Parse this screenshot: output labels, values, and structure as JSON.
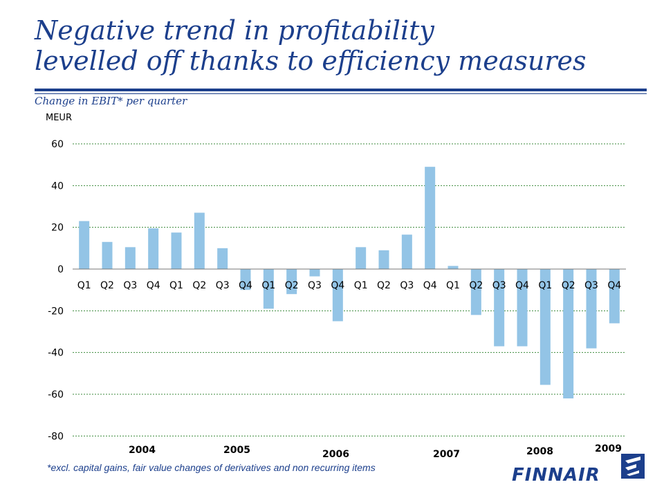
{
  "header": {
    "title_line1": "Negative trend in profitability",
    "title_line2": "levelled off thanks to efficiency measures",
    "subtitle": "Change in EBIT* per quarter",
    "unit": "MEUR"
  },
  "footnote": "*excl. capital gains, fair value changes of derivatives and non recurring items",
  "logo": {
    "text": "FINNAIR",
    "icon": "finnair-logo-icon"
  },
  "colors": {
    "bar": "#93c4e6",
    "brand": "#1c3f8c",
    "grid": "#3b8a3b"
  },
  "chart_data": {
    "type": "bar",
    "ylabel": "MEUR",
    "ylim": [
      -80,
      60
    ],
    "yticks": [
      60,
      40,
      20,
      0,
      -20,
      -40,
      -60,
      -80
    ],
    "grid": true,
    "categories": [
      "Q1",
      "Q2",
      "Q3",
      "Q4",
      "Q1",
      "Q2",
      "Q3",
      "Q4",
      "Q1",
      "Q2",
      "Q3",
      "Q4",
      "Q1",
      "Q2",
      "Q3",
      "Q4",
      "Q1",
      "Q2",
      "Q3",
      "Q4",
      "Q1",
      "Q2",
      "Q3",
      "Q4"
    ],
    "values": [
      23,
      13,
      10.5,
      19.5,
      17.5,
      27,
      10,
      -10,
      -19,
      -12,
      -3.5,
      -25,
      10.5,
      9,
      16.5,
      49,
      1.5,
      -22,
      -37,
      -37,
      -55.5,
      -62,
      -38,
      -26
    ],
    "year_labels": [
      "2004",
      "2005",
      "2006",
      "2007",
      "2008",
      "2009"
    ]
  }
}
